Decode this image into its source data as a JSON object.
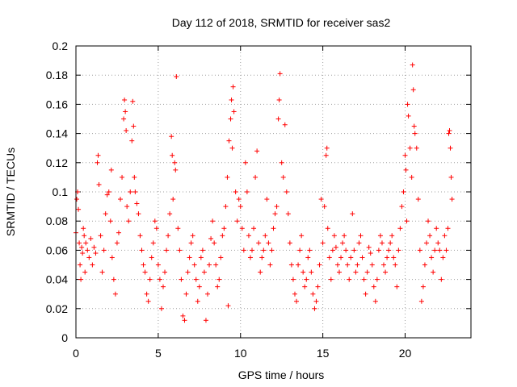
{
  "chart_data": {
    "type": "scatter",
    "title": "Day 112 of 2018, SRMTID for receiver sas2",
    "xlabel": "GPS time / hours",
    "ylabel": "SRMTID / TECUs",
    "xlim": [
      0,
      24
    ],
    "ylim": [
      0,
      0.2
    ],
    "x_ticks": [
      0,
      5,
      10,
      15,
      20
    ],
    "x_tick_labels": [
      "0",
      "5",
      "10",
      "15",
      "20"
    ],
    "y_ticks": [
      0,
      0.02,
      0.04,
      0.06,
      0.08,
      0.1,
      0.12,
      0.14,
      0.16,
      0.18,
      0.2
    ],
    "y_tick_labels": [
      "0",
      "0.02",
      "0.04",
      "0.06",
      "0.08",
      "0.1",
      "0.12",
      "0.14",
      "0.16",
      "0.18",
      "0.2"
    ],
    "grid": true,
    "marker": "plus",
    "color": "#ff0000",
    "series": [
      {
        "name": "SRMTID",
        "points": [
          [
            0.0,
            0.072
          ],
          [
            0.05,
            0.095
          ],
          [
            0.1,
            0.1
          ],
          [
            0.15,
            0.088
          ],
          [
            0.2,
            0.065
          ],
          [
            0.25,
            0.05
          ],
          [
            0.3,
            0.04
          ],
          [
            0.35,
            0.062
          ],
          [
            0.4,
            0.058
          ],
          [
            0.45,
            0.075
          ],
          [
            0.5,
            0.07
          ],
          [
            0.55,
            0.045
          ],
          [
            0.6,
            0.065
          ],
          [
            0.7,
            0.06
          ],
          [
            0.8,
            0.055
          ],
          [
            0.9,
            0.068
          ],
          [
            1.0,
            0.05
          ],
          [
            1.1,
            0.062
          ],
          [
            1.2,
            0.058
          ],
          [
            1.3,
            0.12
          ],
          [
            1.35,
            0.125
          ],
          [
            1.4,
            0.105
          ],
          [
            1.5,
            0.07
          ],
          [
            1.6,
            0.045
          ],
          [
            1.7,
            0.06
          ],
          [
            1.8,
            0.085
          ],
          [
            1.9,
            0.098
          ],
          [
            2.0,
            0.1
          ],
          [
            2.1,
            0.08
          ],
          [
            2.15,
            0.115
          ],
          [
            2.2,
            0.055
          ],
          [
            2.3,
            0.04
          ],
          [
            2.4,
            0.03
          ],
          [
            2.5,
            0.065
          ],
          [
            2.6,
            0.072
          ],
          [
            2.7,
            0.095
          ],
          [
            2.8,
            0.11
          ],
          [
            2.9,
            0.15
          ],
          [
            2.95,
            0.163
          ],
          [
            3.0,
            0.155
          ],
          [
            3.05,
            0.142
          ],
          [
            3.1,
            0.09
          ],
          [
            3.2,
            0.08
          ],
          [
            3.3,
            0.1
          ],
          [
            3.4,
            0.135
          ],
          [
            3.45,
            0.162
          ],
          [
            3.5,
            0.145
          ],
          [
            3.55,
            0.11
          ],
          [
            3.6,
            0.1
          ],
          [
            3.7,
            0.092
          ],
          [
            3.8,
            0.085
          ],
          [
            3.9,
            0.07
          ],
          [
            4.0,
            0.06
          ],
          [
            4.1,
            0.05
          ],
          [
            4.2,
            0.045
          ],
          [
            4.3,
            0.03
          ],
          [
            4.4,
            0.025
          ],
          [
            4.5,
            0.04
          ],
          [
            4.6,
            0.055
          ],
          [
            4.7,
            0.065
          ],
          [
            4.8,
            0.08
          ],
          [
            4.9,
            0.075
          ],
          [
            5.0,
            0.05
          ],
          [
            5.1,
            0.04
          ],
          [
            5.2,
            0.02
          ],
          [
            5.3,
            0.035
          ],
          [
            5.4,
            0.045
          ],
          [
            5.5,
            0.06
          ],
          [
            5.6,
            0.07
          ],
          [
            5.7,
            0.085
          ],
          [
            5.8,
            0.138
          ],
          [
            5.85,
            0.125
          ],
          [
            5.9,
            0.095
          ],
          [
            6.0,
            0.12
          ],
          [
            6.05,
            0.115
          ],
          [
            6.1,
            0.179
          ],
          [
            6.2,
            0.075
          ],
          [
            6.3,
            0.06
          ],
          [
            6.4,
            0.04
          ],
          [
            6.5,
            0.015
          ],
          [
            6.6,
            0.012
          ],
          [
            6.7,
            0.03
          ],
          [
            6.8,
            0.045
          ],
          [
            6.9,
            0.055
          ],
          [
            7.0,
            0.065
          ],
          [
            7.1,
            0.07
          ],
          [
            7.2,
            0.05
          ],
          [
            7.3,
            0.04
          ],
          [
            7.4,
            0.025
          ],
          [
            7.5,
            0.035
          ],
          [
            7.6,
            0.055
          ],
          [
            7.7,
            0.06
          ],
          [
            7.8,
            0.045
          ],
          [
            7.9,
            0.012
          ],
          [
            8.0,
            0.03
          ],
          [
            8.1,
            0.05
          ],
          [
            8.2,
            0.068
          ],
          [
            8.3,
            0.08
          ],
          [
            8.4,
            0.065
          ],
          [
            8.5,
            0.05
          ],
          [
            8.6,
            0.035
          ],
          [
            8.7,
            0.04
          ],
          [
            8.8,
            0.055
          ],
          [
            8.9,
            0.07
          ],
          [
            9.0,
            0.075
          ],
          [
            9.1,
            0.09
          ],
          [
            9.2,
            0.11
          ],
          [
            9.25,
            0.022
          ],
          [
            9.3,
            0.135
          ],
          [
            9.4,
            0.15
          ],
          [
            9.45,
            0.163
          ],
          [
            9.5,
            0.13
          ],
          [
            9.55,
            0.172
          ],
          [
            9.6,
            0.155
          ],
          [
            9.7,
            0.1
          ],
          [
            9.8,
            0.08
          ],
          [
            9.9,
            0.095
          ],
          [
            10.0,
            0.09
          ],
          [
            10.1,
            0.075
          ],
          [
            10.2,
            0.06
          ],
          [
            10.3,
            0.12
          ],
          [
            10.4,
            0.1
          ],
          [
            10.5,
            0.07
          ],
          [
            10.6,
            0.055
          ],
          [
            10.7,
            0.06
          ],
          [
            10.8,
            0.075
          ],
          [
            10.9,
            0.11
          ],
          [
            11.0,
            0.128
          ],
          [
            11.1,
            0.065
          ],
          [
            11.2,
            0.045
          ],
          [
            11.3,
            0.055
          ],
          [
            11.4,
            0.06
          ],
          [
            11.5,
            0.07
          ],
          [
            11.6,
            0.095
          ],
          [
            11.7,
            0.065
          ],
          [
            11.8,
            0.05
          ],
          [
            11.9,
            0.06
          ],
          [
            12.0,
            0.075
          ],
          [
            12.1,
            0.085
          ],
          [
            12.2,
            0.09
          ],
          [
            12.3,
            0.15
          ],
          [
            12.35,
            0.163
          ],
          [
            12.4,
            0.181
          ],
          [
            12.5,
            0.12
          ],
          [
            12.6,
            0.11
          ],
          [
            12.7,
            0.146
          ],
          [
            12.8,
            0.1
          ],
          [
            12.9,
            0.085
          ],
          [
            13.0,
            0.065
          ],
          [
            13.1,
            0.05
          ],
          [
            13.2,
            0.04
          ],
          [
            13.3,
            0.03
          ],
          [
            13.4,
            0.025
          ],
          [
            13.5,
            0.05
          ],
          [
            13.6,
            0.06
          ],
          [
            13.7,
            0.07
          ],
          [
            13.8,
            0.045
          ],
          [
            13.9,
            0.035
          ],
          [
            14.0,
            0.04
          ],
          [
            14.1,
            0.055
          ],
          [
            14.2,
            0.06
          ],
          [
            14.3,
            0.045
          ],
          [
            14.4,
            0.03
          ],
          [
            14.5,
            0.02
          ],
          [
            14.6,
            0.025
          ],
          [
            14.7,
            0.035
          ],
          [
            14.8,
            0.05
          ],
          [
            14.9,
            0.095
          ],
          [
            15.0,
            0.065
          ],
          [
            15.1,
            0.09
          ],
          [
            15.2,
            0.125
          ],
          [
            15.25,
            0.13
          ],
          [
            15.3,
            0.075
          ],
          [
            15.4,
            0.055
          ],
          [
            15.5,
            0.04
          ],
          [
            15.6,
            0.06
          ],
          [
            15.7,
            0.07
          ],
          [
            15.8,
            0.062
          ],
          [
            15.9,
            0.05
          ],
          [
            16.0,
            0.045
          ],
          [
            16.1,
            0.055
          ],
          [
            16.2,
            0.065
          ],
          [
            16.3,
            0.07
          ],
          [
            16.4,
            0.06
          ],
          [
            16.5,
            0.05
          ],
          [
            16.6,
            0.04
          ],
          [
            16.7,
            0.055
          ],
          [
            16.8,
            0.085
          ],
          [
            16.9,
            0.06
          ],
          [
            17.0,
            0.045
          ],
          [
            17.1,
            0.05
          ],
          [
            17.2,
            0.065
          ],
          [
            17.3,
            0.07
          ],
          [
            17.4,
            0.055
          ],
          [
            17.5,
            0.04
          ],
          [
            17.6,
            0.03
          ],
          [
            17.7,
            0.045
          ],
          [
            17.8,
            0.062
          ],
          [
            17.9,
            0.058
          ],
          [
            18.0,
            0.05
          ],
          [
            18.1,
            0.035
          ],
          [
            18.2,
            0.025
          ],
          [
            18.3,
            0.04
          ],
          [
            18.4,
            0.06
          ],
          [
            18.5,
            0.07
          ],
          [
            18.6,
            0.065
          ],
          [
            18.7,
            0.05
          ],
          [
            18.8,
            0.045
          ],
          [
            18.9,
            0.055
          ],
          [
            19.0,
            0.06
          ],
          [
            19.1,
            0.065
          ],
          [
            19.2,
            0.07
          ],
          [
            19.3,
            0.055
          ],
          [
            19.4,
            0.05
          ],
          [
            19.5,
            0.035
          ],
          [
            19.6,
            0.06
          ],
          [
            19.7,
            0.075
          ],
          [
            19.8,
            0.09
          ],
          [
            19.9,
            0.1
          ],
          [
            20.0,
            0.125
          ],
          [
            20.05,
            0.115
          ],
          [
            20.1,
            0.08
          ],
          [
            20.15,
            0.16
          ],
          [
            20.2,
            0.152
          ],
          [
            20.3,
            0.13
          ],
          [
            20.4,
            0.11
          ],
          [
            20.45,
            0.187
          ],
          [
            20.5,
            0.17
          ],
          [
            20.55,
            0.145
          ],
          [
            20.6,
            0.14
          ],
          [
            20.7,
            0.13
          ],
          [
            20.8,
            0.095
          ],
          [
            20.9,
            0.06
          ],
          [
            21.0,
            0.025
          ],
          [
            21.1,
            0.035
          ],
          [
            21.2,
            0.05
          ],
          [
            21.3,
            0.065
          ],
          [
            21.4,
            0.08
          ],
          [
            21.5,
            0.07
          ],
          [
            21.6,
            0.055
          ],
          [
            21.7,
            0.045
          ],
          [
            21.8,
            0.06
          ],
          [
            21.9,
            0.075
          ],
          [
            22.0,
            0.065
          ],
          [
            22.1,
            0.06
          ],
          [
            22.2,
            0.04
          ],
          [
            22.3,
            0.055
          ],
          [
            22.4,
            0.07
          ],
          [
            22.5,
            0.06
          ],
          [
            22.6,
            0.075
          ],
          [
            22.65,
            0.14
          ],
          [
            22.7,
            0.142
          ],
          [
            22.75,
            0.13
          ],
          [
            22.8,
            0.11
          ],
          [
            22.85,
            0.095
          ]
        ]
      }
    ]
  }
}
